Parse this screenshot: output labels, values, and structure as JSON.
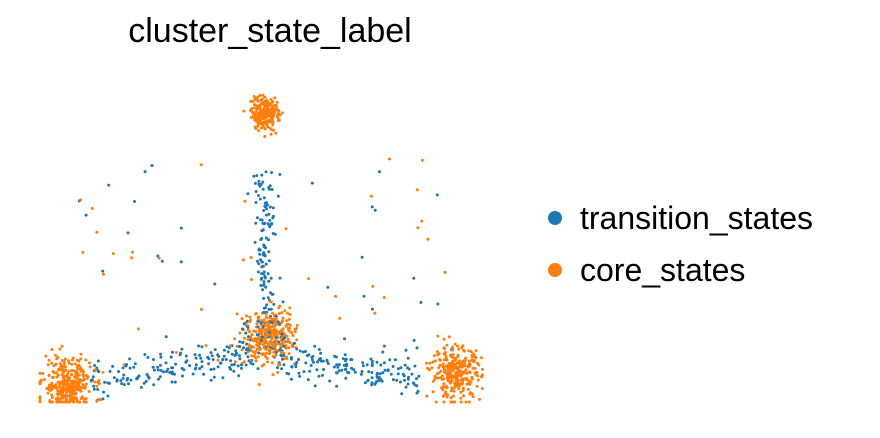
{
  "chart_data": {
    "type": "scatter",
    "title": "cluster_state_label",
    "xlabel": "",
    "ylabel": "",
    "axes_visible": false,
    "grid": false,
    "legend_position": "right",
    "point_size": "small",
    "series": [
      {
        "name": "transition_states",
        "color": "#1f77b4",
        "regions": [
          {
            "kind": "vertical_branch",
            "x": 0.0,
            "y_from": 0.25,
            "y_to": 0.8,
            "count": 120
          },
          {
            "kind": "left_branch",
            "from": [
              -0.78,
              0.07
            ],
            "to": [
              -0.05,
              0.16
            ],
            "count": 160
          },
          {
            "kind": "right_branch",
            "from": [
              0.05,
              0.16
            ],
            "to": [
              0.68,
              0.08
            ],
            "count": 150
          },
          {
            "kind": "hub",
            "center": [
              0.0,
              0.22
            ],
            "spread": 0.05,
            "count": 70
          }
        ]
      },
      {
        "name": "core_states",
        "color": "#ff7f0e",
        "regions": [
          {
            "kind": "top_cluster",
            "center": [
              0.0,
              1.0
            ],
            "spread": 0.03,
            "count": 240
          },
          {
            "kind": "center_cluster",
            "center": [
              0.02,
              0.23
            ],
            "spread": 0.05,
            "count": 320
          },
          {
            "kind": "left_cluster",
            "center": [
              -0.88,
              0.06
            ],
            "spread": 0.05,
            "count": 320
          },
          {
            "kind": "right_cluster",
            "center": [
              0.85,
              0.1
            ],
            "spread": 0.05,
            "count": 300
          }
        ]
      }
    ],
    "xlim": [
      -1.0,
      1.0
    ],
    "ylim": [
      0.0,
      1.1
    ]
  }
}
